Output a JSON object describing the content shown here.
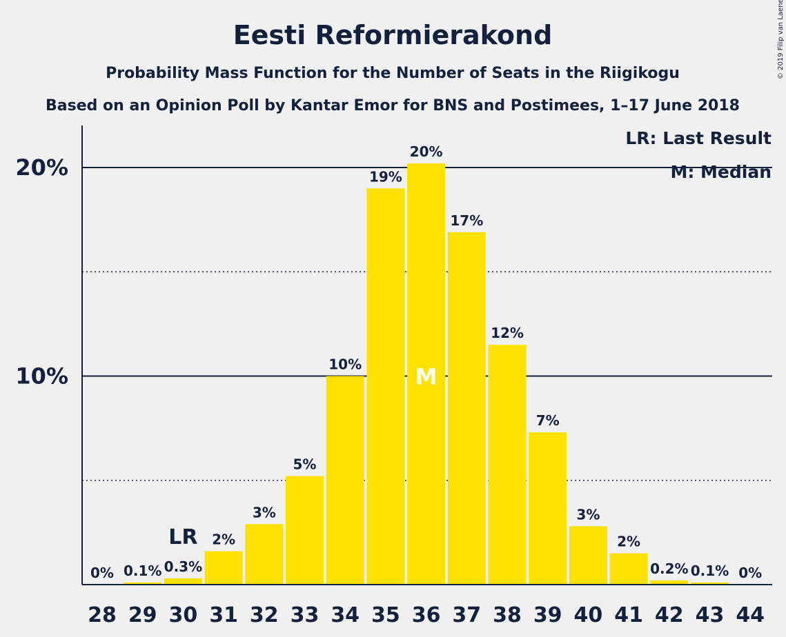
{
  "chart_data": {
    "type": "bar",
    "title": "Eesti Reformierakond",
    "subtitle_1": "Probability Mass Function for the Number of Seats in the Riigikogu",
    "subtitle_2": "Based on an Opinion Poll by Kantar Emor for BNS and Postimees, 1–17 June 2018",
    "copyright": "© 2019 Filip van Laenen",
    "categories": [
      "28",
      "29",
      "30",
      "31",
      "32",
      "33",
      "34",
      "35",
      "36",
      "37",
      "38",
      "39",
      "40",
      "41",
      "42",
      "43",
      "44"
    ],
    "values": [
      0,
      0.1,
      0.3,
      1.6,
      2.9,
      5.2,
      10.0,
      19.0,
      20.2,
      16.9,
      11.5,
      7.3,
      2.8,
      1.5,
      0.2,
      0.1,
      0
    ],
    "value_labels": [
      "0%",
      "0.1%",
      "0.3%",
      "2%",
      "3%",
      "5%",
      "10%",
      "19%",
      "20%",
      "17%",
      "12%",
      "7%",
      "3%",
      "2%",
      "0.2%",
      "0.1%",
      "0%"
    ],
    "ylim": [
      0,
      22
    ],
    "yticks": [
      {
        "value": 10,
        "label": "10%"
      },
      {
        "value": 20,
        "label": "20%"
      }
    ],
    "dotted_gridlines": [
      5,
      15
    ],
    "last_result": {
      "category": "30",
      "label": "LR"
    },
    "median": {
      "category": "36",
      "label": "M"
    },
    "legend": [
      "LR: Last Result",
      "M: Median"
    ],
    "legend_position": "top-right",
    "colors": {
      "bar": "#ffe100",
      "background": "#f0f0f0",
      "text": "#14213d"
    }
  }
}
